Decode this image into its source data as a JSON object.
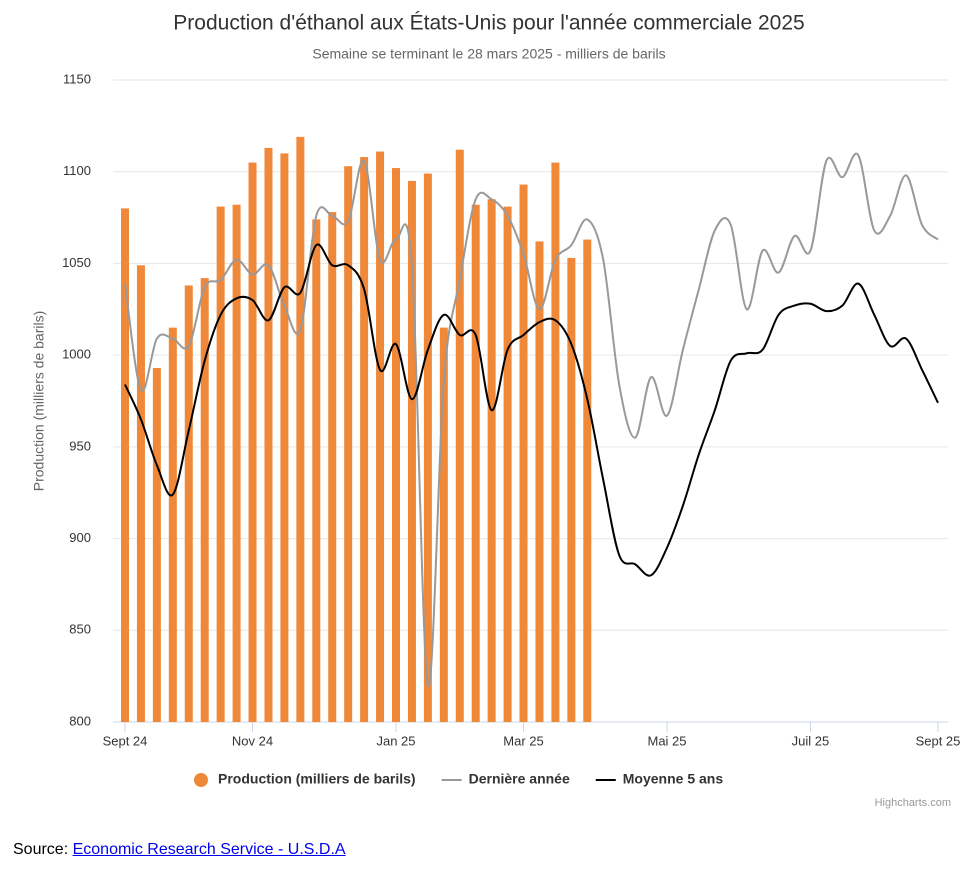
{
  "chart_data": {
    "type": "bar",
    "title": "Production d'éthanol aux États-Unis pour l'année commerciale 2025",
    "subtitle": "Semaine se terminant le 28 mars 2025 - milliers de barils",
    "y_label": "Production (milliers de barils)",
    "categories": [
      "Sept 24",
      null,
      null,
      null,
      null,
      null,
      null,
      null,
      "Nov 24",
      null,
      null,
      null,
      null,
      null,
      null,
      null,
      null,
      "Jan 25",
      null,
      null,
      null,
      null,
      null,
      null,
      null,
      "Mar 25",
      null,
      null,
      null,
      null,
      null,
      null,
      null,
      null,
      "Mai 25",
      null,
      null,
      null,
      null,
      null,
      null,
      null,
      null,
      "Juil 25",
      null,
      null,
      null,
      null,
      null,
      null,
      null,
      "Sept 25"
    ],
    "series": [
      {
        "name": "Production (milliers de barils)",
        "type": "bar",
        "color": "#f0883a",
        "values": [
          1080,
          1049,
          993,
          1015,
          1038,
          1042,
          1081,
          1082,
          1105,
          1113,
          1110,
          1119,
          1074,
          1078,
          1103,
          1108,
          1111,
          1102,
          1095,
          1099,
          1015,
          1112,
          1082,
          1085,
          1081,
          1093,
          1062,
          1105,
          1053,
          1063,
          null,
          null,
          null,
          null,
          null,
          null,
          null,
          null,
          null,
          null,
          null,
          null,
          null,
          null,
          null,
          null,
          null,
          null,
          null,
          null,
          null,
          null
        ]
      },
      {
        "name": "Dernière année",
        "type": "line",
        "color": "#999999",
        "values": [
          1039,
          981,
          1009,
          1009,
          1005,
          1037,
          1041,
          1052,
          1044,
          1049,
          1027,
          1014,
          1076,
          1076,
          1073,
          1106,
          1052,
          1063,
          1049,
          820,
          986,
          1041,
          1085,
          1085,
          1076,
          1055,
          1025,
          1052,
          1060,
          1074,
          1052,
          984,
          955,
          988,
          967,
          1003,
          1036,
          1068,
          1071,
          1025,
          1057,
          1045,
          1065,
          1057,
          1106,
          1097,
          1109,
          1068,
          1076,
          1098,
          1071,
          1063
        ]
      },
      {
        "name": "Moyenne 5 ans",
        "type": "line",
        "color": "#000000",
        "values": [
          984,
          965,
          940,
          924,
          959,
          997,
          1022,
          1031,
          1030,
          1019,
          1037,
          1034,
          1060,
          1049,
          1049,
          1036,
          992,
          1006,
          976,
          1003,
          1022,
          1011,
          1011,
          970,
          1003,
          1011,
          1018,
          1019,
          1006,
          976,
          932,
          891,
          886,
          880,
          895,
          918,
          946,
          970,
          997,
          1001,
          1003,
          1022,
          1027,
          1028,
          1024,
          1027,
          1039,
          1022,
          1005,
          1009,
          992,
          974
        ]
      }
    ],
    "ylim": [
      800,
      1150
    ],
    "yticks": [
      800,
      850,
      900,
      950,
      1000,
      1050,
      1100,
      1150
    ],
    "grid": true,
    "credit": "Highcharts.com"
  },
  "source": {
    "prefix": "Source:",
    "link": "Economic Research Service - U.S.D.A"
  }
}
